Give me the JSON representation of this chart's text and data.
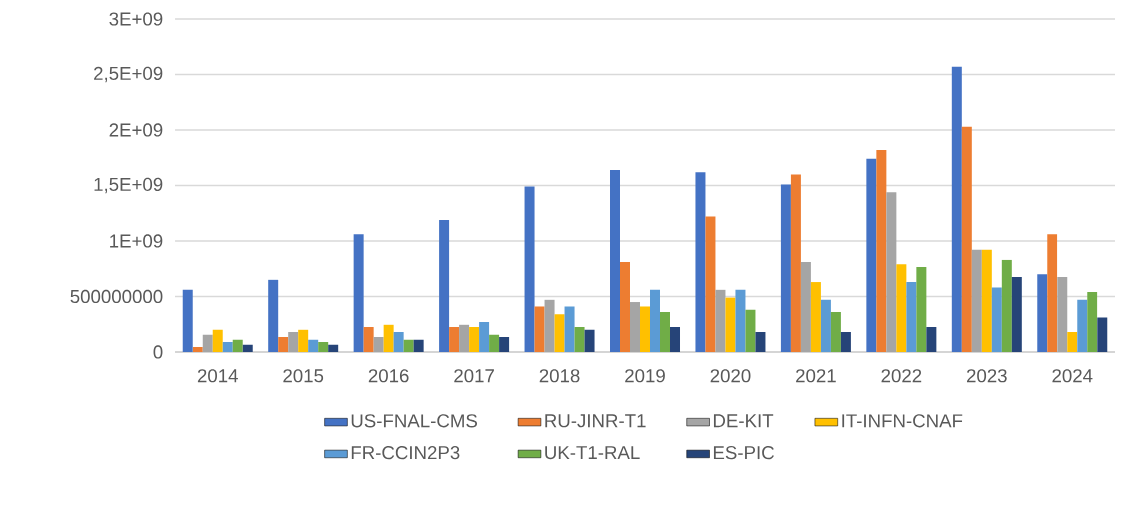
{
  "chart_data": {
    "type": "bar",
    "categories": [
      "2014",
      "2015",
      "2016",
      "2017",
      "2018",
      "2019",
      "2020",
      "2021",
      "2022",
      "2023",
      "2024"
    ],
    "series": [
      {
        "name": "US-FNAL-CMS",
        "color": "#4472c4",
        "values": [
          560000000,
          650000000,
          1060000000,
          1190000000,
          1490000000,
          1640000000,
          1620000000,
          1510000000,
          1740000000,
          2570000000,
          700000000
        ]
      },
      {
        "name": "RU-JINR-T1",
        "color": "#ed7d31",
        "values": [
          45000000,
          135000000,
          225000000,
          225000000,
          410000000,
          810000000,
          1220000000,
          1600000000,
          1820000000,
          2030000000,
          1060000000
        ]
      },
      {
        "name": "DE-KIT",
        "color": "#a5a5a5",
        "values": [
          155000000,
          180000000,
          135000000,
          245000000,
          470000000,
          450000000,
          560000000,
          810000000,
          1440000000,
          920000000,
          675000000
        ]
      },
      {
        "name": "IT-INFN-CNAF",
        "color": "#ffc000",
        "values": [
          200000000,
          200000000,
          245000000,
          225000000,
          340000000,
          410000000,
          490000000,
          630000000,
          790000000,
          920000000,
          180000000
        ]
      },
      {
        "name": "FR-CCIN2P3",
        "color": "#5b9bd5",
        "values": [
          90000000,
          110000000,
          180000000,
          270000000,
          410000000,
          560000000,
          560000000,
          470000000,
          630000000,
          580000000,
          470000000
        ]
      },
      {
        "name": "UK-T1-RAL",
        "color": "#70ad47",
        "values": [
          110000000,
          90000000,
          110000000,
          155000000,
          225000000,
          360000000,
          380000000,
          360000000,
          765000000,
          830000000,
          540000000
        ]
      },
      {
        "name": "ES-PIC",
        "color": "#264478",
        "values": [
          65000000,
          65000000,
          110000000,
          135000000,
          200000000,
          225000000,
          180000000,
          180000000,
          225000000,
          675000000,
          310000000
        ]
      }
    ],
    "ylim": [
      0,
      3000000000
    ],
    "yticks": [
      0,
      500000000,
      {
        "value": 1000000000,
        "label": "1E+09"
      },
      {
        "value": 1500000000,
        "label": "1,5E+09"
      },
      {
        "value": 2000000000,
        "label": "2E+09"
      },
      {
        "value": 2500000000,
        "label": "2,5E+09"
      },
      {
        "value": 3000000000,
        "label": "3E+09"
      }
    ],
    "grid": "y",
    "legend": "bottom"
  }
}
